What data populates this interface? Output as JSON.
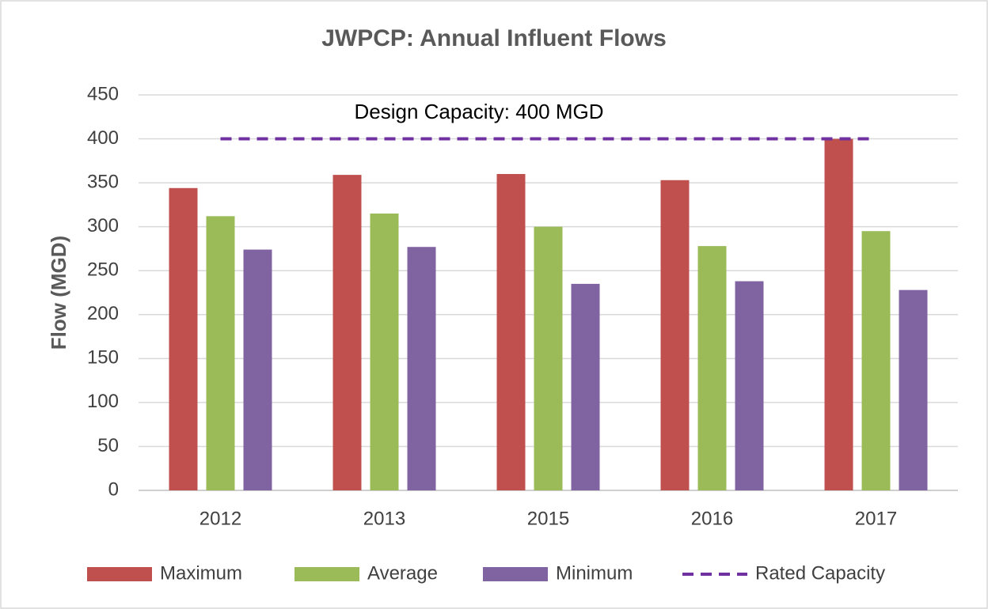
{
  "chart_data": {
    "type": "bar",
    "title": "JWPCP: Annual Influent Flows",
    "y_label": "Flow (MGD)",
    "annotation": "Design Capacity: 400 MGD",
    "categories": [
      "2012",
      "2013",
      "2015",
      "2016",
      "2017"
    ],
    "series": [
      {
        "name": "Maximum",
        "color": "#c0504d",
        "values": [
          344,
          359,
          360,
          353,
          400
        ]
      },
      {
        "name": "Average",
        "color": "#9bbb59",
        "values": [
          312,
          315,
          300,
          278,
          295
        ]
      },
      {
        "name": "Minimum",
        "color": "#8064a2",
        "values": [
          274,
          277,
          235,
          238,
          228
        ]
      },
      {
        "name": "Rated Capacity",
        "color": "#7030a0",
        "type": "line",
        "dashed": true,
        "values": [
          400,
          400,
          400,
          400,
          400
        ]
      }
    ],
    "ylim": [
      0,
      450
    ],
    "yticks": [
      0,
      50,
      100,
      150,
      200,
      250,
      300,
      350,
      400,
      450
    ],
    "grid": true,
    "legend": "bottom"
  }
}
